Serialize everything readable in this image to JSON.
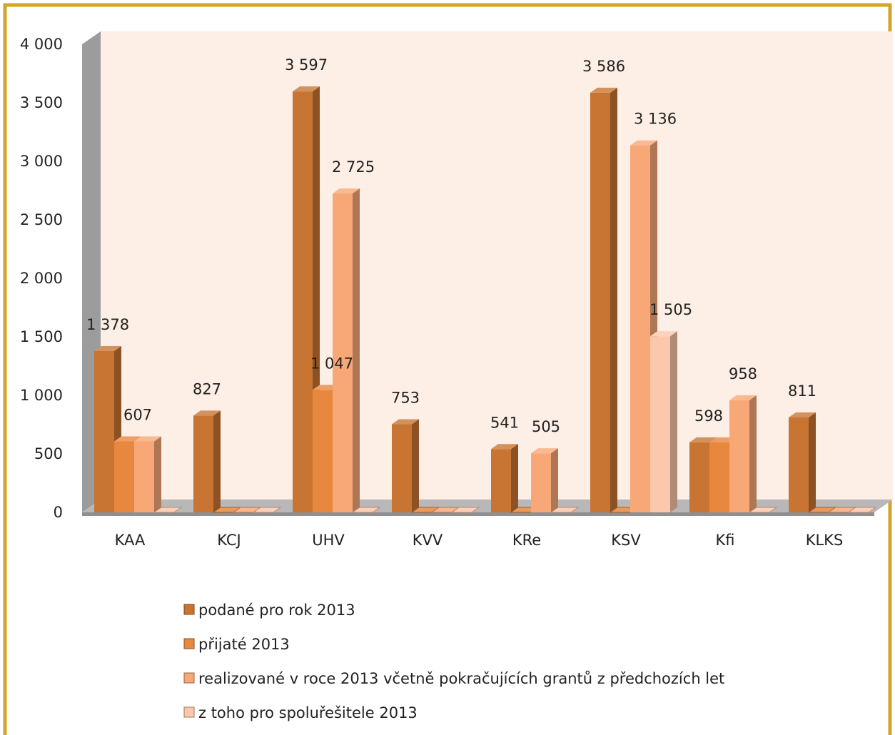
{
  "chart_data": {
    "type": "bar",
    "categories": [
      "KAA",
      "KCJ",
      "UHV",
      "KVV",
      "KRe",
      "KSV",
      "Kfi",
      "KLKS"
    ],
    "series": [
      {
        "name": "podané pro rok 2013",
        "color": "#c87533",
        "values": [
          1378,
          827,
          3597,
          753,
          541,
          3586,
          598,
          811
        ]
      },
      {
        "name": "přijaté 2013",
        "color": "#e8873e",
        "values": [
          607,
          0,
          1047,
          0,
          0,
          0,
          598,
          0
        ]
      },
      {
        "name": "realizované v roce 2013 včetně pokračujících grantů z předchozích let",
        "color": "#f8a877",
        "values": [
          607,
          0,
          2725,
          0,
          505,
          3136,
          958,
          0
        ]
      },
      {
        "name": "z toho pro spoluřešitele 2013",
        "color": "#fcc8ab",
        "values": [
          0,
          0,
          0,
          0,
          0,
          1505,
          0,
          0
        ]
      }
    ],
    "data_labels": [
      {
        "category": "KAA",
        "text": "1 378"
      },
      {
        "category": "KAA",
        "text": "607"
      },
      {
        "category": "KCJ",
        "text": "827"
      },
      {
        "category": "UHV",
        "text": "3 597"
      },
      {
        "category": "UHV",
        "text": "1 047"
      },
      {
        "category": "UHV",
        "text": "2 725"
      },
      {
        "category": "KVV",
        "text": "753"
      },
      {
        "category": "KRe",
        "text": "541"
      },
      {
        "category": "KRe",
        "text": "505"
      },
      {
        "category": "KSV",
        "text": "3 586"
      },
      {
        "category": "KSV",
        "text": "3 136"
      },
      {
        "category": "KSV",
        "text": "1 505"
      },
      {
        "category": "Kfi",
        "text": "598"
      },
      {
        "category": "Kfi",
        "text": "958"
      },
      {
        "category": "KLKS",
        "text": "811"
      }
    ],
    "yticks": [
      "0",
      "500",
      "1 000",
      "1 500",
      "2 000",
      "2 500",
      "3 000",
      "3 500",
      "4 000"
    ],
    "ylim": [
      0,
      4000
    ],
    "title": "",
    "xlabel": "",
    "ylabel": "",
    "legend_position": "bottom",
    "style": "3d-clustered-column",
    "frame_color": "#d4a52a",
    "wall_color": "#fdeee6"
  }
}
